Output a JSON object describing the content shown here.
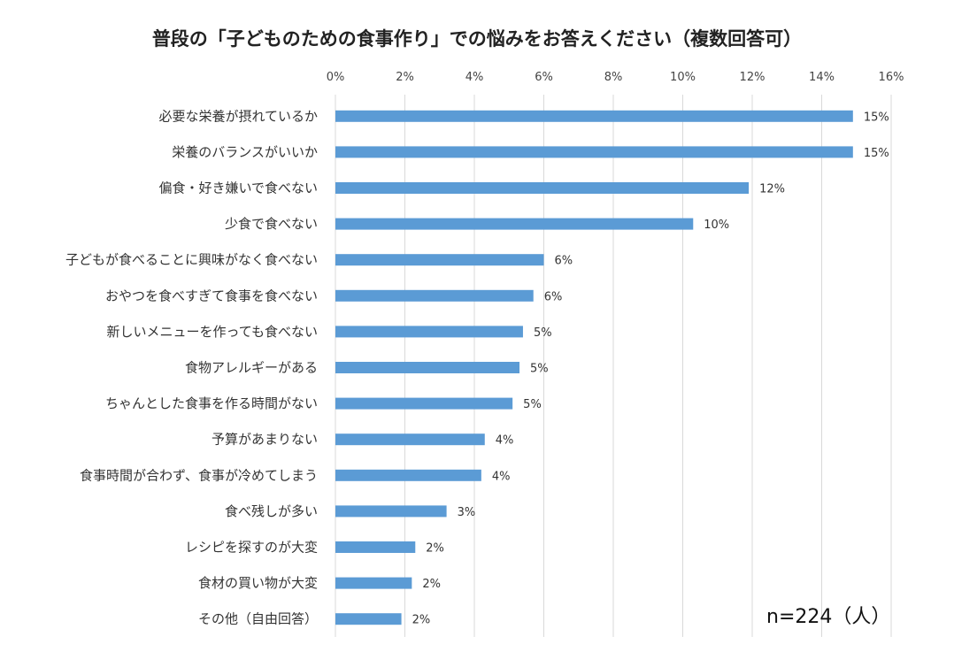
{
  "chart_data": {
    "type": "bar",
    "orientation": "horizontal",
    "title": "普段の「子どものための食事作り」での悩みをお答えください（複数回答可）",
    "note": "n=224（人）",
    "x_axis": {
      "min": 0,
      "max": 16,
      "step": 2,
      "unit": "%",
      "position": "top",
      "ticks": [
        "0%",
        "2%",
        "4%",
        "6%",
        "8%",
        "10%",
        "12%",
        "14%",
        "16%"
      ],
      "grid": true
    },
    "categories": [
      "必要な栄養が摂れているか",
      "栄養のバランスがいいか",
      "偏食・好き嫌いで食べない",
      "少食で食べない",
      "子どもが食べることに興味がなく食べない",
      "おやつを食べすぎて食事を食べない",
      "新しいメニューを作っても食べない",
      "食物アレルギーがある",
      "ちゃんとした食事を作る時間がない",
      "予算があまりない",
      "食事時間が合わず、食事が冷めてしまう",
      "食べ残しが多い",
      "レシピを探すのが大変",
      "食材の買い物が大変",
      "その他（自由回答）"
    ],
    "values": [
      14.9,
      14.9,
      11.9,
      10.3,
      6.0,
      5.7,
      5.4,
      5.3,
      5.1,
      4.3,
      4.2,
      3.2,
      2.3,
      2.2,
      1.9
    ],
    "data_labels": [
      "15%",
      "15%",
      "12%",
      "10%",
      "6%",
      "6%",
      "5%",
      "5%",
      "5%",
      "4%",
      "4%",
      "3%",
      "2%",
      "2%",
      "2%"
    ],
    "bar_color": "#5B9BD5",
    "grid_color": "#D9D9D9"
  }
}
